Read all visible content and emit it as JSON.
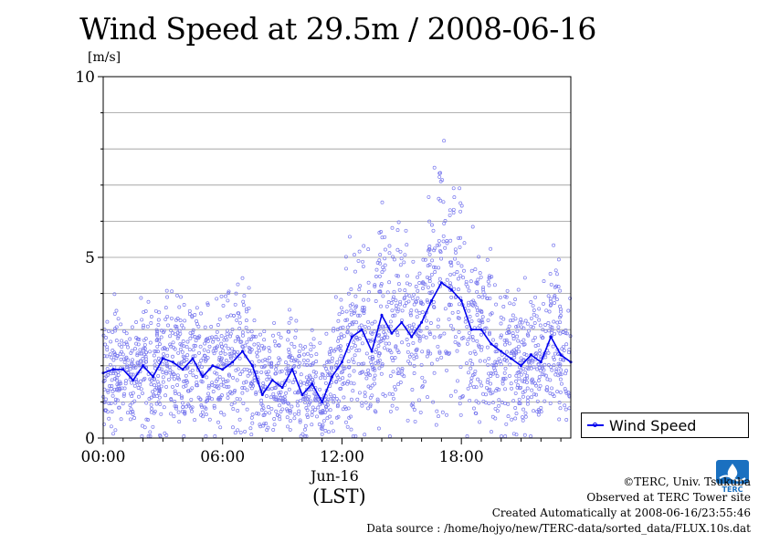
{
  "title": "Wind Speed at 29.5m / 2008-06-16",
  "unit": "[m/s]",
  "legend": {
    "label": "Wind Speed"
  },
  "date_label": "Jun-16",
  "timezone_label": "(LST)",
  "footer": {
    "copyright": "©TERC, Univ. Tsukuba",
    "observed": "Observed at TERC Tower site",
    "created": "Created Automatically at 2008-06-16/23:55:46",
    "source": "Data source : /home/hojyo/new/TERC-data/sorted_data/FLUX.10s.dat"
  },
  "logo": {
    "text": "TERC"
  },
  "colors": {
    "line": "#0000ee",
    "scatter": "#7a7aee",
    "grid": "#999999",
    "logo": "#1a70c0"
  },
  "chart_data": {
    "type": "line",
    "ylim": [
      0,
      10
    ],
    "xlim_hours": [
      0,
      23.5
    ],
    "yticks": [
      "0",
      "5",
      "10"
    ],
    "xticks": [
      {
        "hour": 0,
        "label": "00:00"
      },
      {
        "hour": 6,
        "label": "06:00"
      },
      {
        "hour": 12,
        "label": "12:00"
      },
      {
        "hour": 18,
        "label": "18:00"
      }
    ],
    "grid": true,
    "legend_position": "right-bottom",
    "series": [
      {
        "name": "Wind Speed",
        "style": "line+scatter",
        "hours": [
          0,
          0.5,
          1,
          1.5,
          2,
          2.5,
          3,
          3.5,
          4,
          4.5,
          5,
          5.5,
          6,
          6.5,
          7,
          7.5,
          8,
          8.5,
          9,
          9.5,
          10,
          10.5,
          11,
          11.5,
          12,
          12.5,
          13,
          13.5,
          14,
          14.5,
          15,
          15.5,
          16,
          16.5,
          17,
          17.5,
          18,
          18.5,
          19,
          19.5,
          20,
          20.5,
          21,
          21.5,
          22,
          22.5,
          23,
          23.5
        ],
        "values": [
          1.8,
          1.9,
          1.9,
          1.6,
          2.0,
          1.7,
          2.2,
          2.1,
          1.9,
          2.2,
          1.7,
          2.0,
          1.9,
          2.1,
          2.4,
          2.0,
          1.2,
          1.6,
          1.4,
          1.9,
          1.2,
          1.5,
          1.0,
          1.7,
          2.1,
          2.8,
          3.0,
          2.4,
          3.4,
          2.9,
          3.2,
          2.8,
          3.2,
          3.8,
          4.3,
          4.1,
          3.8,
          3.0,
          3.0,
          2.6,
          2.4,
          2.2,
          2.0,
          2.3,
          2.1,
          2.8,
          2.3,
          2.1
        ]
      }
    ]
  }
}
